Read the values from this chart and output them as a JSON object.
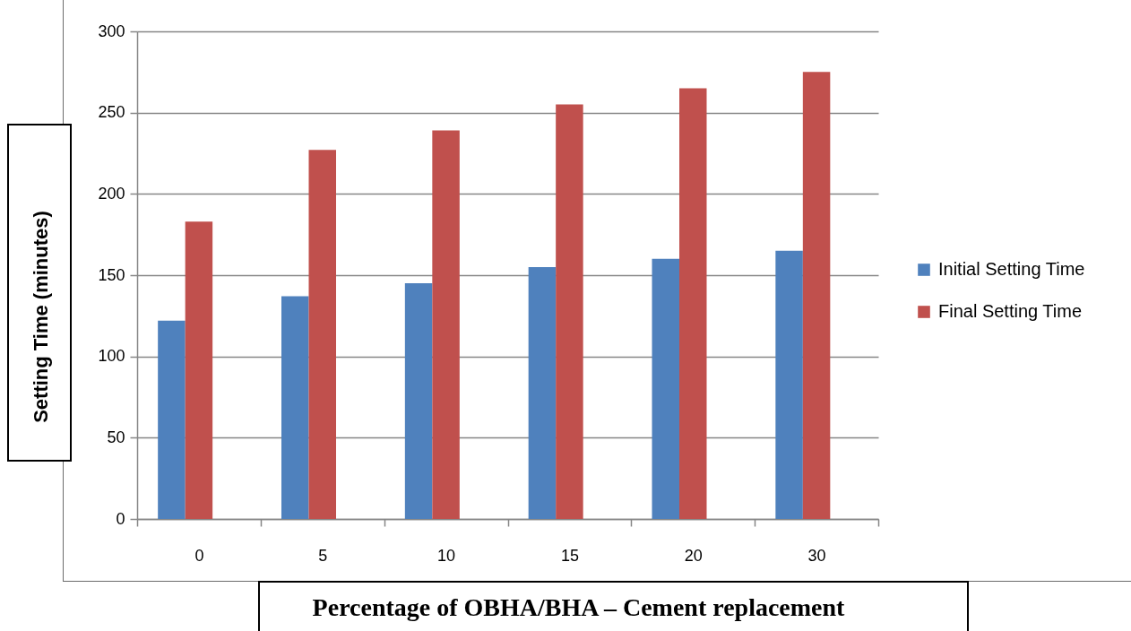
{
  "chart_data": {
    "type": "bar",
    "xlabel": "Percentage of OBHA/BHA – Cement replacement",
    "ylabel": "Setting Time (minutes)",
    "categories": [
      "0",
      "5",
      "10",
      "15",
      "20",
      "30"
    ],
    "series": [
      {
        "name": "Initial Setting Time",
        "color": "#4f81bd",
        "values": [
          122,
          137,
          145,
          155,
          160,
          165
        ]
      },
      {
        "name": "Final Setting Time",
        "color": "#c0504d",
        "values": [
          183,
          227,
          239,
          255,
          265,
          275
        ]
      }
    ],
    "ylim": [
      0,
      300
    ],
    "yticks": [
      0,
      50,
      100,
      150,
      200,
      250,
      300
    ],
    "grid": "y",
    "legend": "right"
  }
}
